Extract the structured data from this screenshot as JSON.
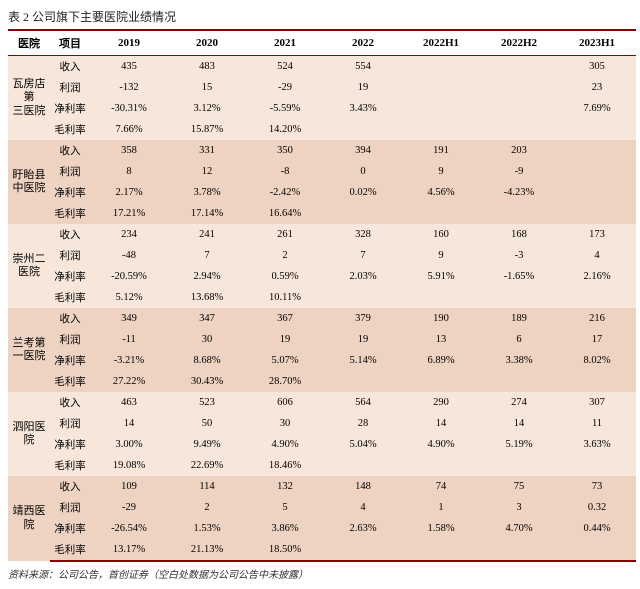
{
  "title": "表 2 公司旗下主要医院业绩情况",
  "footnote": "资料来源：公司公告，首创证券（空白处数据为公司公告中未披露）",
  "columns": {
    "hospital": "医院",
    "item": "项目",
    "y2019": "2019",
    "y2020": "2020",
    "y2021": "2021",
    "y2022": "2022",
    "y2022H1": "2022H1",
    "y2022H2": "2022H2",
    "y2023H1": "2023H1"
  },
  "items": {
    "revenue": "收入",
    "profit": "利润",
    "net_margin": "净利率",
    "gross_margin": "毛利率"
  },
  "style": {
    "band_light": "#f7e7da",
    "band_dark": "#efd3c2",
    "border_color": "#8b0000",
    "title_fontsize": 12,
    "body_fontsize": 10.5,
    "header_fontsize": 11
  },
  "hospitals": [
    {
      "name": "瓦房店第\n三医院",
      "band": "light",
      "rows": {
        "revenue": {
          "y2019": "435",
          "y2020": "483",
          "y2021": "524",
          "y2022": "554",
          "y2022H1": "",
          "y2022H2": "",
          "y2023H1": "305"
        },
        "profit": {
          "y2019": "-132",
          "y2020": "15",
          "y2021": "-29",
          "y2022": "19",
          "y2022H1": "",
          "y2022H2": "",
          "y2023H1": "23"
        },
        "net_margin": {
          "y2019": "-30.31%",
          "y2020": "3.12%",
          "y2021": "-5.59%",
          "y2022": "3.43%",
          "y2022H1": "",
          "y2022H2": "",
          "y2023H1": "7.69%"
        },
        "gross_margin": {
          "y2019": "7.66%",
          "y2020": "15.87%",
          "y2021": "14.20%",
          "y2022": "",
          "y2022H1": "",
          "y2022H2": "",
          "y2023H1": ""
        }
      }
    },
    {
      "name": "盱眙县\n中医院",
      "band": "dark",
      "rows": {
        "revenue": {
          "y2019": "358",
          "y2020": "331",
          "y2021": "350",
          "y2022": "394",
          "y2022H1": "191",
          "y2022H2": "203",
          "y2023H1": ""
        },
        "profit": {
          "y2019": "8",
          "y2020": "12",
          "y2021": "-8",
          "y2022": "0",
          "y2022H1": "9",
          "y2022H2": "-9",
          "y2023H1": ""
        },
        "net_margin": {
          "y2019": "2.17%",
          "y2020": "3.78%",
          "y2021": "-2.42%",
          "y2022": "0.02%",
          "y2022H1": "4.56%",
          "y2022H2": "-4.23%",
          "y2023H1": ""
        },
        "gross_margin": {
          "y2019": "17.21%",
          "y2020": "17.14%",
          "y2021": "16.64%",
          "y2022": "",
          "y2022H1": "",
          "y2022H2": "",
          "y2023H1": ""
        }
      }
    },
    {
      "name": "崇州二\n医院",
      "band": "light",
      "rows": {
        "revenue": {
          "y2019": "234",
          "y2020": "241",
          "y2021": "261",
          "y2022": "328",
          "y2022H1": "160",
          "y2022H2": "168",
          "y2023H1": "173"
        },
        "profit": {
          "y2019": "-48",
          "y2020": "7",
          "y2021": "2",
          "y2022": "7",
          "y2022H1": "9",
          "y2022H2": "-3",
          "y2023H1": "4"
        },
        "net_margin": {
          "y2019": "-20.59%",
          "y2020": "2.94%",
          "y2021": "0.59%",
          "y2022": "2.03%",
          "y2022H1": "5.91%",
          "y2022H2": "-1.65%",
          "y2023H1": "2.16%"
        },
        "gross_margin": {
          "y2019": "5.12%",
          "y2020": "13.68%",
          "y2021": "10.11%",
          "y2022": "",
          "y2022H1": "",
          "y2022H2": "",
          "y2023H1": ""
        }
      }
    },
    {
      "name": "兰考第\n一医院",
      "band": "dark",
      "rows": {
        "revenue": {
          "y2019": "349",
          "y2020": "347",
          "y2021": "367",
          "y2022": "379",
          "y2022H1": "190",
          "y2022H2": "189",
          "y2023H1": "216"
        },
        "profit": {
          "y2019": "-11",
          "y2020": "30",
          "y2021": "19",
          "y2022": "19",
          "y2022H1": "13",
          "y2022H2": "6",
          "y2023H1": "17"
        },
        "net_margin": {
          "y2019": "-3.21%",
          "y2020": "8.68%",
          "y2021": "5.07%",
          "y2022": "5.14%",
          "y2022H1": "6.89%",
          "y2022H2": "3.38%",
          "y2023H1": "8.02%"
        },
        "gross_margin": {
          "y2019": "27.22%",
          "y2020": "30.43%",
          "y2021": "28.70%",
          "y2022": "",
          "y2022H1": "",
          "y2022H2": "",
          "y2023H1": ""
        }
      }
    },
    {
      "name": "泗阳医\n院",
      "band": "light",
      "rows": {
        "revenue": {
          "y2019": "463",
          "y2020": "523",
          "y2021": "606",
          "y2022": "564",
          "y2022H1": "290",
          "y2022H2": "274",
          "y2023H1": "307"
        },
        "profit": {
          "y2019": "14",
          "y2020": "50",
          "y2021": "30",
          "y2022": "28",
          "y2022H1": "14",
          "y2022H2": "14",
          "y2023H1": "11"
        },
        "net_margin": {
          "y2019": "3.00%",
          "y2020": "9.49%",
          "y2021": "4.90%",
          "y2022": "5.04%",
          "y2022H1": "4.90%",
          "y2022H2": "5.19%",
          "y2023H1": "3.63%"
        },
        "gross_margin": {
          "y2019": "19.08%",
          "y2020": "22.69%",
          "y2021": "18.46%",
          "y2022": "",
          "y2022H1": "",
          "y2022H2": "",
          "y2023H1": ""
        }
      }
    },
    {
      "name": "靖西医\n院",
      "band": "dark",
      "rows": {
        "revenue": {
          "y2019": "109",
          "y2020": "114",
          "y2021": "132",
          "y2022": "148",
          "y2022H1": "74",
          "y2022H2": "75",
          "y2023H1": "73"
        },
        "profit": {
          "y2019": "-29",
          "y2020": "2",
          "y2021": "5",
          "y2022": "4",
          "y2022H1": "1",
          "y2022H2": "3",
          "y2023H1": "0.32"
        },
        "net_margin": {
          "y2019": "-26.54%",
          "y2020": "1.53%",
          "y2021": "3.86%",
          "y2022": "2.63%",
          "y2022H1": "1.58%",
          "y2022H2": "4.70%",
          "y2023H1": "0.44%"
        },
        "gross_margin": {
          "y2019": "13.17%",
          "y2020": "21.13%",
          "y2021": "18.50%",
          "y2022": "",
          "y2022H1": "",
          "y2022H2": "",
          "y2023H1": ""
        }
      }
    }
  ]
}
